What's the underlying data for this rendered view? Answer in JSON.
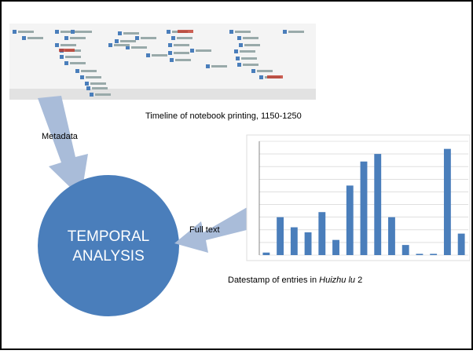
{
  "slide": {
    "timeline_caption": "Timeline of notebook printing, 1150-1250",
    "metadata_label": "Metadata",
    "fulltext_label": "Full text",
    "circle_lines": [
      "TEMPORAL",
      "ANALYSIS"
    ],
    "chart_caption": {
      "before": "Datestamp of entries in ",
      "italic": "Huizhu lu",
      "after": " 2"
    }
  },
  "bar_chart": {
    "type": "bar",
    "color": "#4a7ebb",
    "values": [
      0.2,
      3.0,
      2.2,
      1.8,
      3.4,
      1.2,
      5.5,
      7.4,
      8.0,
      3.0,
      0.8,
      0.1,
      0.1,
      8.4,
      1.7
    ],
    "ylim": [
      0,
      9
    ],
    "yticks": [
      0,
      1,
      2,
      3,
      4,
      5,
      6,
      7,
      8,
      9
    ],
    "grid": true
  }
}
